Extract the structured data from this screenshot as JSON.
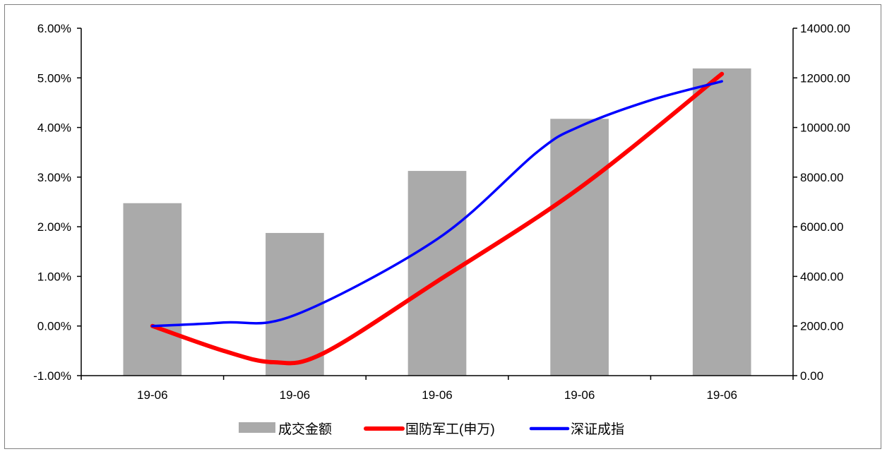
{
  "chart_data": {
    "type": "bar",
    "categories": [
      "19-06",
      "19-06",
      "19-06",
      "19-06",
      "19-06"
    ],
    "series": [
      {
        "name": "成交金额",
        "type": "bar",
        "axis": "right",
        "color": "#aaaaaa",
        "values": [
          6950,
          5750,
          8250,
          10350,
          12380
        ]
      },
      {
        "name": "国防军工(申万)",
        "type": "line",
        "axis": "left",
        "color": "#ff0000",
        "points": [
          {
            "x": 0,
            "y": 0.0
          },
          {
            "x": 0.5,
            "y": -0.5
          },
          {
            "x": 0.85,
            "y": -0.73
          },
          {
            "x": 1.2,
            "y": -0.55
          },
          {
            "x": 2,
            "y": 0.9
          },
          {
            "x": 3,
            "y": 2.78
          },
          {
            "x": 4,
            "y": 5.08
          }
        ]
      },
      {
        "name": "深证成指",
        "type": "line",
        "axis": "left",
        "color": "#0000ff",
        "points": [
          {
            "x": 0,
            "y": 0.0
          },
          {
            "x": 0.5,
            "y": 0.07
          },
          {
            "x": 1,
            "y": 0.22
          },
          {
            "x": 2,
            "y": 1.75
          },
          {
            "x": 2.7,
            "y": 3.5
          },
          {
            "x": 3,
            "y": 4.02
          },
          {
            "x": 3.5,
            "y": 4.55
          },
          {
            "x": 4,
            "y": 4.93
          }
        ]
      }
    ],
    "y_left": {
      "min": -1,
      "max": 6,
      "ticks": [
        -1,
        0,
        1,
        2,
        3,
        4,
        5,
        6
      ],
      "tick_labels": [
        "-1.00%",
        "0.00%",
        "1.00%",
        "2.00%",
        "3.00%",
        "4.00%",
        "5.00%",
        "6.00%"
      ]
    },
    "y_right": {
      "min": 0,
      "max": 14000,
      "ticks": [
        0,
        2000,
        4000,
        6000,
        8000,
        10000,
        12000,
        14000
      ],
      "tick_labels": [
        "0.00",
        "2000.00",
        "4000.00",
        "6000.00",
        "8000.00",
        "10000.00",
        "12000.00",
        "14000.00"
      ]
    },
    "grid": false,
    "legend": "bottom-center",
    "title": "",
    "xlabel": "",
    "ylabel": ""
  }
}
